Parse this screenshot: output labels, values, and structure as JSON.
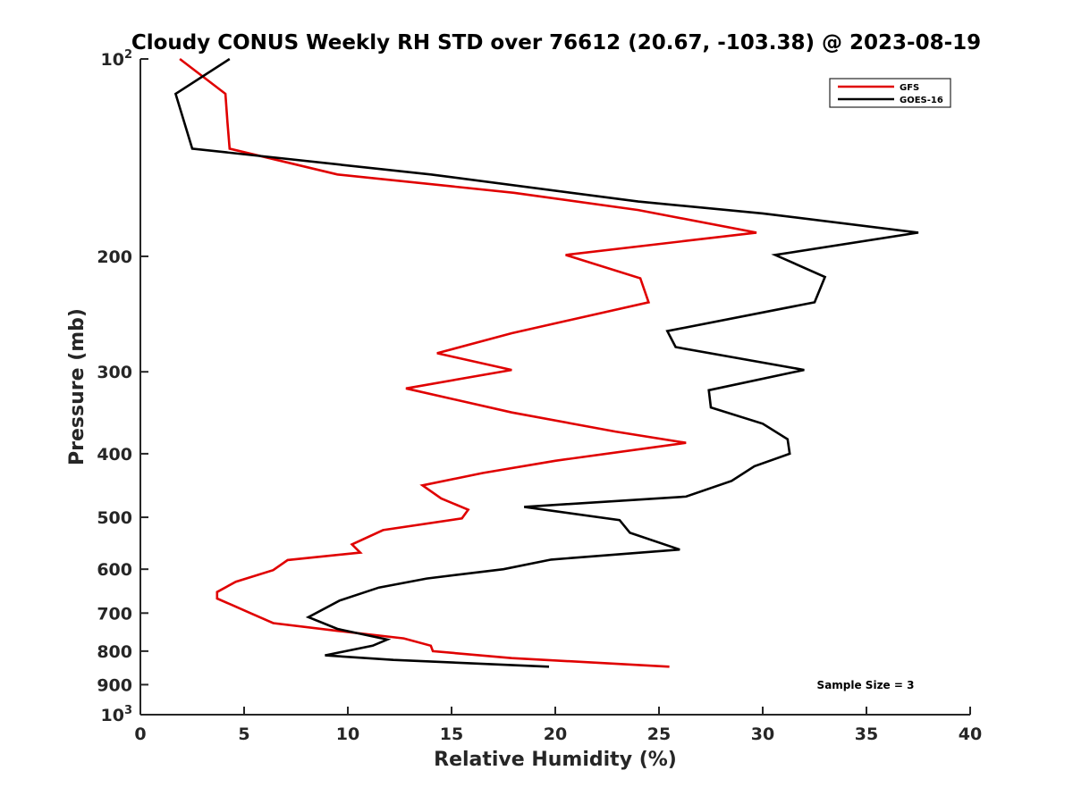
{
  "chart_data": {
    "type": "line",
    "title": "Cloudy CONUS Weekly RH STD over 76612 (20.67, -103.38) @ 2023-08-19",
    "xlabel": "Relative Humidity (%)",
    "ylabel": "Pressure (mb)",
    "xlim": [
      0,
      40
    ],
    "ylim": [
      100,
      1000
    ],
    "yscale": "log",
    "y_reversed": true,
    "xticks": [
      0,
      5,
      10,
      15,
      20,
      25,
      30,
      35,
      40
    ],
    "yticks": [
      {
        "value": 100,
        "label": "10",
        "sup": "2"
      },
      {
        "value": 200,
        "label": "200"
      },
      {
        "value": 300,
        "label": "300"
      },
      {
        "value": 400,
        "label": "400"
      },
      {
        "value": 500,
        "label": "500"
      },
      {
        "value": 600,
        "label": "600"
      },
      {
        "value": 700,
        "label": "700"
      },
      {
        "value": 800,
        "label": "800"
      },
      {
        "value": 900,
        "label": "900"
      },
      {
        "value": 1000,
        "label": "10",
        "sup": "3"
      }
    ],
    "grid": false,
    "legend_position": "top-right",
    "annotation": "Sample Size = 3",
    "series": [
      {
        "name": "GFS",
        "color": "#e00000",
        "points": [
          [
            1.9,
            100
          ],
          [
            4.1,
            113
          ],
          [
            4.2,
            125
          ],
          [
            4.3,
            137
          ],
          [
            9.5,
            150
          ],
          [
            18.0,
            160
          ],
          [
            24.0,
            170
          ],
          [
            29.7,
            184
          ],
          [
            20.5,
            199
          ],
          [
            24.1,
            216
          ],
          [
            24.5,
            235
          ],
          [
            17.9,
            262
          ],
          [
            14.3,
            281
          ],
          [
            17.9,
            298
          ],
          [
            12.8,
            318
          ],
          [
            17.9,
            346
          ],
          [
            22.9,
            370
          ],
          [
            26.3,
            385
          ],
          [
            20.0,
            410
          ],
          [
            16.5,
            428
          ],
          [
            13.6,
            447
          ],
          [
            14.5,
            468
          ],
          [
            15.8,
            487
          ],
          [
            15.5,
            502
          ],
          [
            11.7,
            523
          ],
          [
            10.2,
            550
          ],
          [
            10.6,
            566
          ],
          [
            7.1,
            581
          ],
          [
            6.4,
            602
          ],
          [
            4.6,
            627
          ],
          [
            3.7,
            650
          ],
          [
            3.7,
            665
          ],
          [
            4.4,
            680
          ],
          [
            5.3,
            700
          ],
          [
            6.4,
            725
          ],
          [
            9.5,
            745
          ],
          [
            12.7,
            765
          ],
          [
            14.0,
            785
          ],
          [
            14.1,
            800
          ],
          [
            17.9,
            820
          ],
          [
            25.5,
            845
          ]
        ]
      },
      {
        "name": "GOES-16",
        "color": "#000000",
        "points": [
          [
            4.3,
            100
          ],
          [
            1.7,
            113
          ],
          [
            2.5,
            137
          ],
          [
            14.0,
            150
          ],
          [
            24.0,
            165
          ],
          [
            30.0,
            172
          ],
          [
            37.5,
            184
          ],
          [
            30.6,
            199
          ],
          [
            33.0,
            215
          ],
          [
            32.5,
            235
          ],
          [
            25.4,
            260
          ],
          [
            25.8,
            275
          ],
          [
            32.0,
            298
          ],
          [
            27.4,
            320
          ],
          [
            27.5,
            340
          ],
          [
            30.0,
            360
          ],
          [
            31.2,
            380
          ],
          [
            31.3,
            400
          ],
          [
            29.6,
            418
          ],
          [
            28.5,
            440
          ],
          [
            26.3,
            465
          ],
          [
            18.5,
            482
          ],
          [
            23.1,
            505
          ],
          [
            23.6,
            528
          ],
          [
            26.0,
            560
          ],
          [
            19.8,
            580
          ],
          [
            17.5,
            600
          ],
          [
            13.8,
            620
          ],
          [
            11.5,
            640
          ],
          [
            9.6,
            670
          ],
          [
            8.1,
            710
          ],
          [
            9.5,
            740
          ],
          [
            11.9,
            768
          ],
          [
            11.2,
            785
          ],
          [
            8.9,
            812
          ],
          [
            12.2,
            825
          ],
          [
            19.7,
            845
          ]
        ]
      }
    ]
  }
}
